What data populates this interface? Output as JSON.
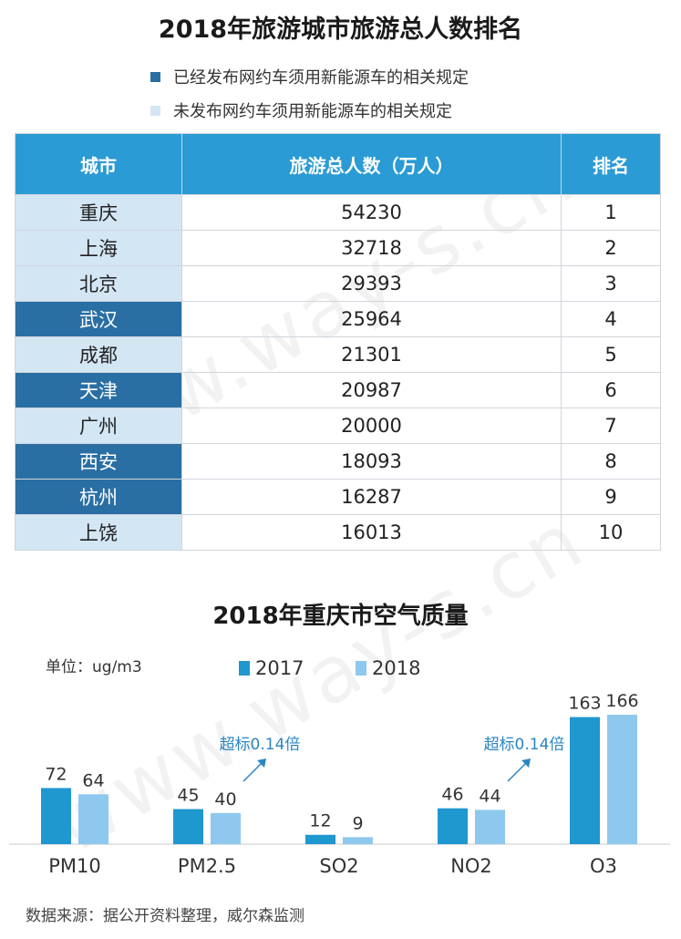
{
  "title": "2018年旅游城市旅游总人数排名",
  "legend": {
    "published": "已经发布网约车须用新能源车的相关规定",
    "not_published": "未发布网约车须用新能源车的相关规定"
  },
  "colors": {
    "published": "#2a6fa3",
    "not_published": "#d3e6f4",
    "header": "#2a9bd4",
    "bar_2017": "#1f97cf",
    "bar_2018": "#8ec8ee"
  },
  "table": {
    "headers": [
      "城市",
      "旅游总人数（万人）",
      "排名"
    ],
    "rows": [
      {
        "city": "重庆",
        "visitors": "54230",
        "rank": "1",
        "regulated": false
      },
      {
        "city": "上海",
        "visitors": "32718",
        "rank": "2",
        "regulated": false
      },
      {
        "city": "北京",
        "visitors": "29393",
        "rank": "3",
        "regulated": false
      },
      {
        "city": "武汉",
        "visitors": "25964",
        "rank": "4",
        "regulated": true
      },
      {
        "city": "成都",
        "visitors": "21301",
        "rank": "5",
        "regulated": false
      },
      {
        "city": "天津",
        "visitors": "20987",
        "rank": "6",
        "regulated": true
      },
      {
        "city": "广州",
        "visitors": "20000",
        "rank": "7",
        "regulated": false
      },
      {
        "city": "西安",
        "visitors": "18093",
        "rank": "8",
        "regulated": true
      },
      {
        "city": "杭州",
        "visitors": "16287",
        "rank": "9",
        "regulated": true
      },
      {
        "city": "上饶",
        "visitors": "16013",
        "rank": "10",
        "regulated": false
      }
    ]
  },
  "chart_data": {
    "type": "bar",
    "title": "2018年重庆市空气质量",
    "unit_label": "单位：ug/m3",
    "categories": [
      "PM10",
      "PM2.5",
      "SO2",
      "NO2",
      "O3"
    ],
    "series": [
      {
        "name": "2017",
        "values": [
          72,
          45,
          12,
          46,
          163
        ]
      },
      {
        "name": "2018",
        "values": [
          64,
          40,
          9,
          44,
          166
        ]
      }
    ],
    "ylim": [
      0,
      170
    ],
    "annotations": [
      {
        "category": "PM2.5",
        "text": "超标0.14倍"
      },
      {
        "category": "NO2",
        "text": "超标0.14倍"
      }
    ],
    "legend_position": "top"
  },
  "source": "数据来源：据公开资料整理，威尔森监测",
  "watermark": "www.way-s.cn"
}
